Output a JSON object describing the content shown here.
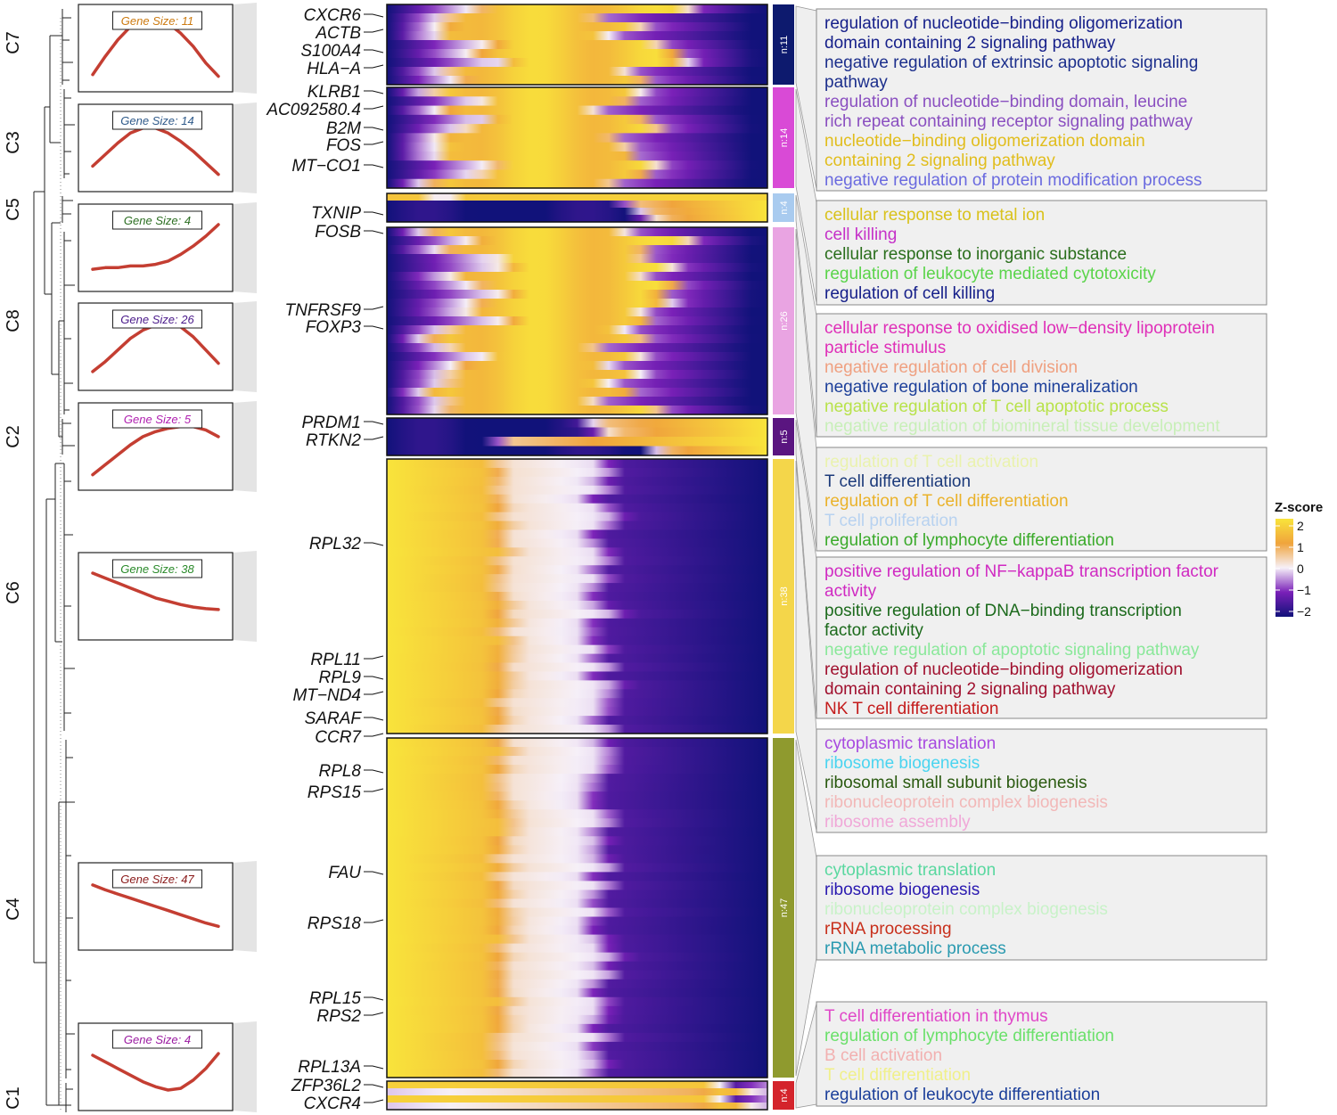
{
  "chart_data": {
    "type": "heatmap",
    "title": "",
    "legend": {
      "title": "Z-score",
      "ticks": [
        2,
        1,
        0,
        -1,
        -2
      ],
      "tick_labels": [
        "2",
        "1",
        "0",
        "−1",
        "−2"
      ],
      "colors": [
        "#f9e43b",
        "#f0a43c",
        "#f6f0f8",
        "#7a20b8",
        "#11127a"
      ]
    },
    "clusters": [
      {
        "id": "C7",
        "gene_count": 11,
        "n_label": "n:11",
        "color": "#0d1a6e",
        "gene_size_label": "Gene Size: 11",
        "label_color": "#cc7a10",
        "trend": [
          -1.5,
          -0.4,
          0.6,
          1.4,
          1.8,
          1.9,
          1.6,
          1.0,
          0.2,
          -0.8,
          -1.6
        ],
        "pattern": "mid",
        "genes": [
          "CXCR6",
          "ACTB",
          "S100A4",
          "HLA−A"
        ],
        "go_terms": [
          {
            "text": "regulation of nucleotide−binding oligomerization",
            "color": "#16208a"
          },
          {
            "text": "domain containing 2 signaling pathway",
            "color": "#16208a"
          },
          {
            "text": "negative regulation of extrinsic apoptotic signaling",
            "color": "#1c2f8c"
          },
          {
            "text": "pathway",
            "color": "#1c2f8c"
          },
          {
            "text": "regulation of nucleotide−binding domain, leucine",
            "color": "#8a4fc0"
          },
          {
            "text": "rich repeat containing receptor signaling pathway",
            "color": "#8a4fc0"
          },
          {
            "text": "nucleotide−binding oligomerization domain",
            "color": "#e1bd1c"
          },
          {
            "text": "containing 2 signaling pathway",
            "color": "#e1bd1c"
          },
          {
            "text": "negative regulation of protein modification process",
            "color": "#6a6adf"
          }
        ]
      },
      {
        "id": "C3",
        "gene_count": 14,
        "n_label": "n:14",
        "color": "#d94ad6",
        "gene_size_label": "Gene Size: 14",
        "label_color": "#2f5a8a",
        "trend": [
          -1.0,
          -0.3,
          0.4,
          1.0,
          1.3,
          1.3,
          1.0,
          0.5,
          -0.1,
          -0.8,
          -1.5
        ],
        "pattern": "mid",
        "genes": [
          "KLRB1",
          "AC092580.4",
          "B2M",
          "FOS",
          "MT−CO1"
        ],
        "go_terms": [
          {
            "text": "cellular response to metal ion",
            "color": "#d9c21c"
          },
          {
            "text": "cell killing",
            "color": "#c531c8"
          },
          {
            "text": "cellular response to inorganic substance",
            "color": "#2a6e1c"
          },
          {
            "text": "regulation of leukocyte mediated cytotoxicity",
            "color": "#5ad44a"
          },
          {
            "text": "regulation of cell killing",
            "color": "#16208a"
          }
        ]
      },
      {
        "id": "C5",
        "gene_count": 4,
        "n_label": "n:4",
        "color": "#a9cbef",
        "gene_size_label": "Gene Size: 4",
        "label_color": "#2c6e22",
        "trend": [
          -1.2,
          -1.1,
          -1.1,
          -1.0,
          -1.0,
          -0.9,
          -0.7,
          -0.3,
          0.2,
          0.8,
          1.5
        ],
        "pattern": "late",
        "genes": [
          "TXNIP"
        ],
        "go_terms": [
          {
            "text": "cellular response to oxidised low−density lipoprotein",
            "color": "#df2fb8"
          },
          {
            "text": "particle stimulus",
            "color": "#df2fb8"
          },
          {
            "text": "negative regulation of cell division",
            "color": "#efa080"
          },
          {
            "text": "negative regulation of bone mineralization",
            "color": "#1c3f9a"
          },
          {
            "text": "negative regulation of T cell apoptotic process",
            "color": "#b8e24a"
          },
          {
            "text": "negative regulation of biomineral tissue development",
            "color": "#c8efb8"
          }
        ]
      },
      {
        "id": "C8",
        "gene_count": 26,
        "n_label": "n:26",
        "color": "#e9a4e2",
        "gene_size_label": "Gene Size: 26",
        "label_color": "#4a1a8a",
        "trend": [
          -1.4,
          -0.8,
          -0.1,
          0.6,
          1.1,
          1.4,
          1.5,
          1.3,
          0.7,
          -0.1,
          -0.9
        ],
        "pattern": "mid",
        "genes": [
          "FOSB",
          "TNFRSF9",
          "FOXP3"
        ],
        "go_terms": [
          {
            "text": "regulation of T cell activation",
            "color": "#eaf2ae"
          },
          {
            "text": "T cell differentiation",
            "color": "#1c3a7a"
          },
          {
            "text": "regulation of T cell differentiation",
            "color": "#eab22a"
          },
          {
            "text": "T cell proliferation",
            "color": "#b8d2f0"
          },
          {
            "text": "regulation of lymphocyte differentiation",
            "color": "#3aaa2a"
          }
        ]
      },
      {
        "id": "C2",
        "gene_count": 5,
        "n_label": "n:5",
        "color": "#5a1580",
        "gene_size_label": "Gene Size: 5",
        "label_color": "#b020b0",
        "trend": [
          -1.6,
          -1.0,
          -0.4,
          0.2,
          0.7,
          1.0,
          1.2,
          1.3,
          1.3,
          1.1,
          0.7
        ],
        "pattern": "late",
        "genes": [
          "PRDM1",
          "RTKN2"
        ],
        "go_terms": [
          {
            "text": "positive regulation of NF−kappaB transcription factor",
            "color": "#d02ac2"
          },
          {
            "text": " activity",
            "color": "#d02ac2"
          },
          {
            "text": "positive regulation of DNA−binding transcription",
            "color": "#1c6a1c"
          },
          {
            "text": "factor activity",
            "color": "#1c6a1c"
          },
          {
            "text": "negative regulation of apoptotic signaling pathway",
            "color": "#8ae89a"
          },
          {
            "text": "regulation of nucleotide−binding oligomerization",
            "color": "#a0102e"
          },
          {
            "text": "domain containing 2 signaling pathway",
            "color": "#a0102e"
          },
          {
            "text": "NK T cell differentiation",
            "color": "#c41c1c"
          }
        ]
      },
      {
        "id": "C6",
        "gene_count": 38,
        "n_label": "n:38",
        "color": "#f4d64a",
        "gene_size_label": "Gene Size: 38",
        "label_color": "#2a8a2a",
        "trend": [
          1.5,
          1.2,
          0.9,
          0.6,
          0.3,
          0.0,
          -0.2,
          -0.4,
          -0.55,
          -0.65,
          -0.7
        ],
        "pattern": "early",
        "genes": [
          "RPL32",
          "RPL11",
          "RPL9",
          "MT−ND4",
          "SARAF",
          "CCR7"
        ],
        "go_terms": [
          {
            "text": "cytoplasmic translation",
            "color": "#a84ae0"
          },
          {
            "text": "ribosome biogenesis",
            "color": "#4ad4f0"
          },
          {
            "text": "ribosomal small subunit biogenesis",
            "color": "#2a5a10"
          },
          {
            "text": "ribonucleoprotein complex biogenesis",
            "color": "#f2b8b8"
          },
          {
            "text": "ribosome assembly",
            "color": "#f0a8d8"
          }
        ]
      },
      {
        "id": "C4",
        "gene_count": 47,
        "n_label": "n:47",
        "color": "#8f9a2e",
        "gene_size_label": "Gene Size: 47",
        "label_color": "#8a1a1a",
        "trend": [
          1.4,
          1.1,
          0.85,
          0.6,
          0.35,
          0.1,
          -0.15,
          -0.4,
          -0.65,
          -0.9,
          -1.1
        ],
        "pattern": "early",
        "genes": [
          "RPL8",
          "RPS15",
          "FAU",
          "RPS18",
          "RPL15",
          "RPS2",
          "RPL13A"
        ],
        "go_terms": [
          {
            "text": "cytoplasmic translation",
            "color": "#5ad8a0"
          },
          {
            "text": "ribosome biogenesis",
            "color": "#2a1ab0"
          },
          {
            "text": "ribonucleoprotein complex biogenesis",
            "color": "#c8f2c8"
          },
          {
            "text": "rRNA processing",
            "color": "#c8301c"
          },
          {
            "text": "rRNA metabolic process",
            "color": "#2a9ab0"
          }
        ]
      },
      {
        "id": "C1",
        "gene_count": 4,
        "n_label": "n:4",
        "color": "#d4242c",
        "gene_size_label": "Gene Size: 4",
        "label_color": "#9a1aa0",
        "trend": [
          0.8,
          0.4,
          0.0,
          -0.4,
          -0.8,
          -1.1,
          -1.3,
          -1.2,
          -0.7,
          0.0,
          0.9
        ],
        "pattern": "valley",
        "genes": [
          "ZFP36L2",
          "CXCR4"
        ],
        "go_terms": [
          {
            "text": "T cell differentiation in thymus",
            "color": "#e048c8"
          },
          {
            "text": "regulation of lymphocyte differentiation",
            "color": "#6ae06a"
          },
          {
            "text": "B cell activation",
            "color": "#f2b0b0"
          },
          {
            "text": "T cell differentiation",
            "color": "#f0f08a"
          },
          {
            "text": "regulation of leukocyte differentiation",
            "color": "#1c3f9a"
          }
        ]
      }
    ]
  }
}
